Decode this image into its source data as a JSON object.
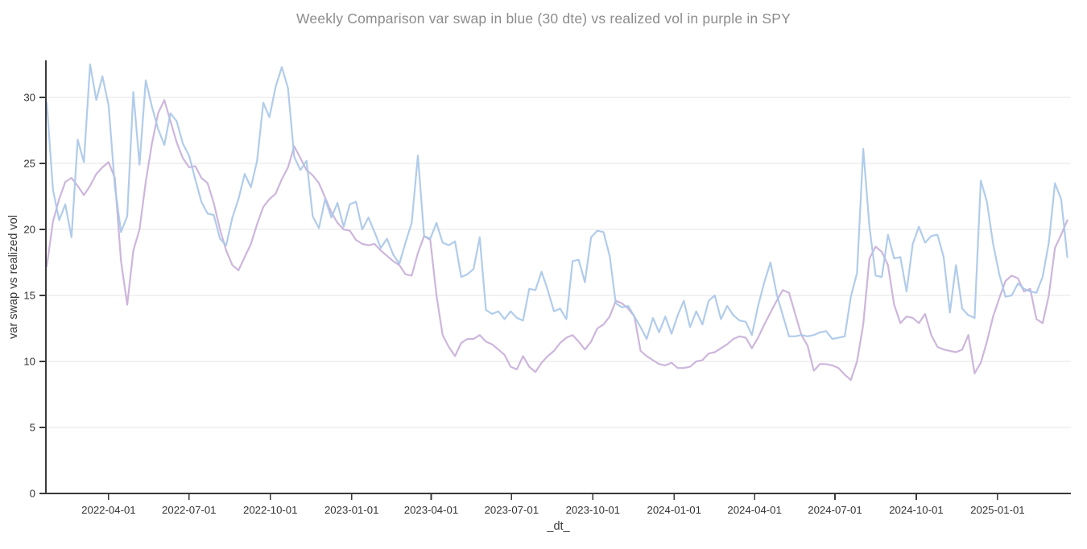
{
  "page": {
    "background": "#ffffff"
  },
  "chart_data": {
    "type": "line",
    "title": "Weekly Comparison var swap in blue (30 dte) vs realized vol in purple in SPY",
    "xlabel": "_dt_",
    "ylabel": "var swap vs realized vol",
    "grid": "horizontal-only",
    "legend_position": "none",
    "ylim": [
      0,
      32.8
    ],
    "xlim": [
      "2022-01-20",
      "2025-03-25"
    ],
    "y_ticks": [
      0,
      5,
      10,
      15,
      20,
      25,
      30
    ],
    "x_ticks": [
      "2022-04-01",
      "2022-07-01",
      "2022-10-01",
      "2023-01-01",
      "2023-04-01",
      "2023-07-01",
      "2023-10-01",
      "2024-01-01",
      "2024-04-01",
      "2024-07-01",
      "2024-10-01",
      "2025-01-01"
    ],
    "colors": {
      "var_swap_line": "#a9c6e8",
      "realized_vol_line": "#c8aed8",
      "gridline": "#e6e6e6",
      "axis_spine": "#3a3a3a",
      "tick_label": "#333333",
      "title": "#8c8c8c"
    },
    "dates": [
      "2022-01-21",
      "2022-01-28",
      "2022-02-04",
      "2022-02-11",
      "2022-02-18",
      "2022-02-25",
      "2022-03-04",
      "2022-03-11",
      "2022-03-18",
      "2022-03-25",
      "2022-04-01",
      "2022-04-08",
      "2022-04-15",
      "2022-04-22",
      "2022-04-29",
      "2022-05-06",
      "2022-05-13",
      "2022-05-20",
      "2022-05-27",
      "2022-06-03",
      "2022-06-10",
      "2022-06-17",
      "2022-06-24",
      "2022-07-01",
      "2022-07-08",
      "2022-07-15",
      "2022-07-22",
      "2022-07-29",
      "2022-08-05",
      "2022-08-12",
      "2022-08-19",
      "2022-08-26",
      "2022-09-02",
      "2022-09-09",
      "2022-09-16",
      "2022-09-23",
      "2022-09-30",
      "2022-10-07",
      "2022-10-14",
      "2022-10-21",
      "2022-10-28",
      "2022-11-04",
      "2022-11-11",
      "2022-11-18",
      "2022-11-25",
      "2022-12-02",
      "2022-12-09",
      "2022-12-16",
      "2022-12-23",
      "2022-12-30",
      "2023-01-06",
      "2023-01-13",
      "2023-01-20",
      "2023-01-27",
      "2023-02-03",
      "2023-02-10",
      "2023-02-17",
      "2023-02-24",
      "2023-03-03",
      "2023-03-10",
      "2023-03-17",
      "2023-03-24",
      "2023-03-31",
      "2023-04-07",
      "2023-04-14",
      "2023-04-21",
      "2023-04-28",
      "2023-05-05",
      "2023-05-12",
      "2023-05-19",
      "2023-05-26",
      "2023-06-02",
      "2023-06-09",
      "2023-06-16",
      "2023-06-23",
      "2023-06-30",
      "2023-07-07",
      "2023-07-14",
      "2023-07-21",
      "2023-07-28",
      "2023-08-04",
      "2023-08-11",
      "2023-08-18",
      "2023-08-25",
      "2023-09-01",
      "2023-09-08",
      "2023-09-15",
      "2023-09-22",
      "2023-09-29",
      "2023-10-06",
      "2023-10-13",
      "2023-10-20",
      "2023-10-27",
      "2023-11-03",
      "2023-11-10",
      "2023-11-17",
      "2023-11-24",
      "2023-12-01",
      "2023-12-08",
      "2023-12-15",
      "2023-12-22",
      "2023-12-29",
      "2024-01-05",
      "2024-01-12",
      "2024-01-19",
      "2024-01-26",
      "2024-02-02",
      "2024-02-09",
      "2024-02-16",
      "2024-02-23",
      "2024-03-01",
      "2024-03-08",
      "2024-03-15",
      "2024-03-22",
      "2024-03-29",
      "2024-04-05",
      "2024-04-12",
      "2024-04-19",
      "2024-04-26",
      "2024-05-03",
      "2024-05-10",
      "2024-05-17",
      "2024-05-24",
      "2024-05-31",
      "2024-06-07",
      "2024-06-14",
      "2024-06-21",
      "2024-06-28",
      "2024-07-05",
      "2024-07-12",
      "2024-07-19",
      "2024-07-26",
      "2024-08-02",
      "2024-08-09",
      "2024-08-16",
      "2024-08-23",
      "2024-08-30",
      "2024-09-06",
      "2024-09-13",
      "2024-09-20",
      "2024-09-27",
      "2024-10-04",
      "2024-10-11",
      "2024-10-18",
      "2024-10-25",
      "2024-11-01",
      "2024-11-08",
      "2024-11-15",
      "2024-11-22",
      "2024-11-29",
      "2024-12-06",
      "2024-12-13",
      "2024-12-20",
      "2024-12-27",
      "2025-01-03",
      "2025-01-10",
      "2025-01-17",
      "2025-01-24",
      "2025-01-31",
      "2025-02-07",
      "2025-02-14",
      "2025-02-21",
      "2025-02-28",
      "2025-03-07",
      "2025-03-14",
      "2025-03-21"
    ],
    "series": [
      {
        "name": "var swap (30 dte)",
        "color_key": "var_swap_line",
        "values": [
          29.6,
          23.0,
          20.7,
          21.9,
          19.4,
          26.8,
          25.1,
          32.5,
          29.8,
          31.6,
          29.4,
          23.3,
          19.8,
          21.0,
          30.4,
          24.9,
          31.3,
          29.3,
          27.6,
          26.4,
          28.8,
          28.2,
          26.5,
          25.6,
          23.8,
          22.1,
          21.2,
          21.1,
          19.3,
          18.8,
          20.9,
          22.3,
          24.2,
          23.2,
          25.2,
          29.6,
          28.5,
          30.8,
          32.3,
          30.7,
          25.5,
          24.5,
          25.2,
          21.0,
          20.1,
          22.3,
          20.9,
          22.0,
          20.2,
          21.9,
          22.1,
          20.0,
          20.9,
          19.8,
          18.6,
          19.3,
          18.1,
          17.4,
          19.0,
          20.5,
          25.6,
          19.5,
          19.3,
          20.5,
          19.0,
          18.8,
          19.1,
          16.4,
          16.6,
          17.0,
          19.4,
          13.9,
          13.6,
          13.8,
          13.2,
          13.8,
          13.3,
          13.1,
          15.5,
          15.4,
          16.8,
          15.4,
          13.8,
          14.0,
          13.2,
          17.6,
          17.7,
          16.0,
          19.4,
          19.9,
          19.8,
          18.0,
          14.4,
          14.1,
          14.2,
          13.4,
          12.6,
          11.7,
          13.3,
          12.2,
          13.4,
          12.1,
          13.5,
          14.6,
          12.6,
          13.8,
          12.8,
          14.6,
          15.0,
          13.2,
          14.2,
          13.5,
          13.1,
          13.0,
          12.0,
          14.2,
          16.0,
          17.5,
          15.1,
          13.5,
          11.9,
          11.9,
          12.0,
          11.9,
          12.0,
          12.2,
          12.3,
          11.7,
          11.8,
          11.9,
          14.9,
          16.7,
          26.1,
          20.2,
          16.5,
          16.4,
          19.6,
          17.8,
          17.9,
          15.3,
          18.9,
          20.2,
          19.0,
          19.5,
          19.6,
          17.9,
          13.7,
          17.3,
          14.0,
          13.5,
          13.3,
          23.7,
          22.1,
          18.9,
          16.6,
          14.9,
          15.0,
          15.9,
          15.5,
          15.3,
          15.2,
          16.4,
          19.0,
          23.5,
          22.3,
          17.9
        ]
      },
      {
        "name": "realized vol",
        "color_key": "realized_vol_line",
        "values": [
          17.2,
          20.6,
          22.3,
          23.6,
          23.9,
          23.3,
          22.6,
          23.3,
          24.2,
          24.7,
          25.1,
          23.9,
          17.6,
          14.3,
          18.4,
          20.0,
          23.6,
          26.5,
          28.8,
          29.8,
          28.2,
          26.6,
          25.4,
          24.7,
          24.8,
          23.9,
          23.5,
          22.0,
          20.0,
          18.4,
          17.3,
          16.9,
          17.9,
          18.9,
          20.4,
          21.7,
          22.3,
          22.7,
          23.8,
          24.7,
          26.3,
          25.4,
          24.5,
          24.1,
          23.5,
          22.4,
          21.3,
          20.5,
          20.0,
          19.9,
          19.2,
          18.9,
          18.8,
          18.9,
          18.4,
          18.0,
          17.6,
          17.3,
          16.6,
          16.5,
          18.2,
          19.5,
          19.2,
          15.0,
          12.0,
          11.1,
          10.4,
          11.4,
          11.7,
          11.7,
          12.0,
          11.5,
          11.3,
          10.9,
          10.5,
          9.6,
          9.4,
          10.4,
          9.6,
          9.2,
          9.9,
          10.4,
          10.8,
          11.4,
          11.8,
          12.0,
          11.5,
          10.9,
          11.5,
          12.5,
          12.8,
          13.4,
          14.6,
          14.4,
          14.0,
          13.4,
          10.8,
          10.4,
          10.1,
          9.8,
          9.7,
          9.9,
          9.5,
          9.5,
          9.6,
          10.0,
          10.1,
          10.6,
          10.7,
          11.0,
          11.3,
          11.7,
          11.9,
          11.8,
          11.0,
          11.8,
          12.8,
          13.7,
          14.6,
          15.4,
          15.2,
          13.6,
          12.0,
          11.2,
          9.3,
          9.8,
          9.8,
          9.7,
          9.5,
          9.0,
          8.6,
          10.0,
          12.8,
          17.8,
          18.7,
          18.3,
          17.3,
          14.3,
          12.9,
          13.4,
          13.3,
          12.9,
          13.6,
          12.0,
          11.1,
          10.9,
          10.8,
          10.7,
          10.9,
          12.0,
          9.1,
          9.9,
          11.5,
          13.4,
          14.8,
          16.1,
          16.5,
          16.3,
          15.3,
          15.5,
          13.2,
          12.9,
          15.0,
          18.6,
          19.6,
          20.7
        ]
      }
    ]
  }
}
